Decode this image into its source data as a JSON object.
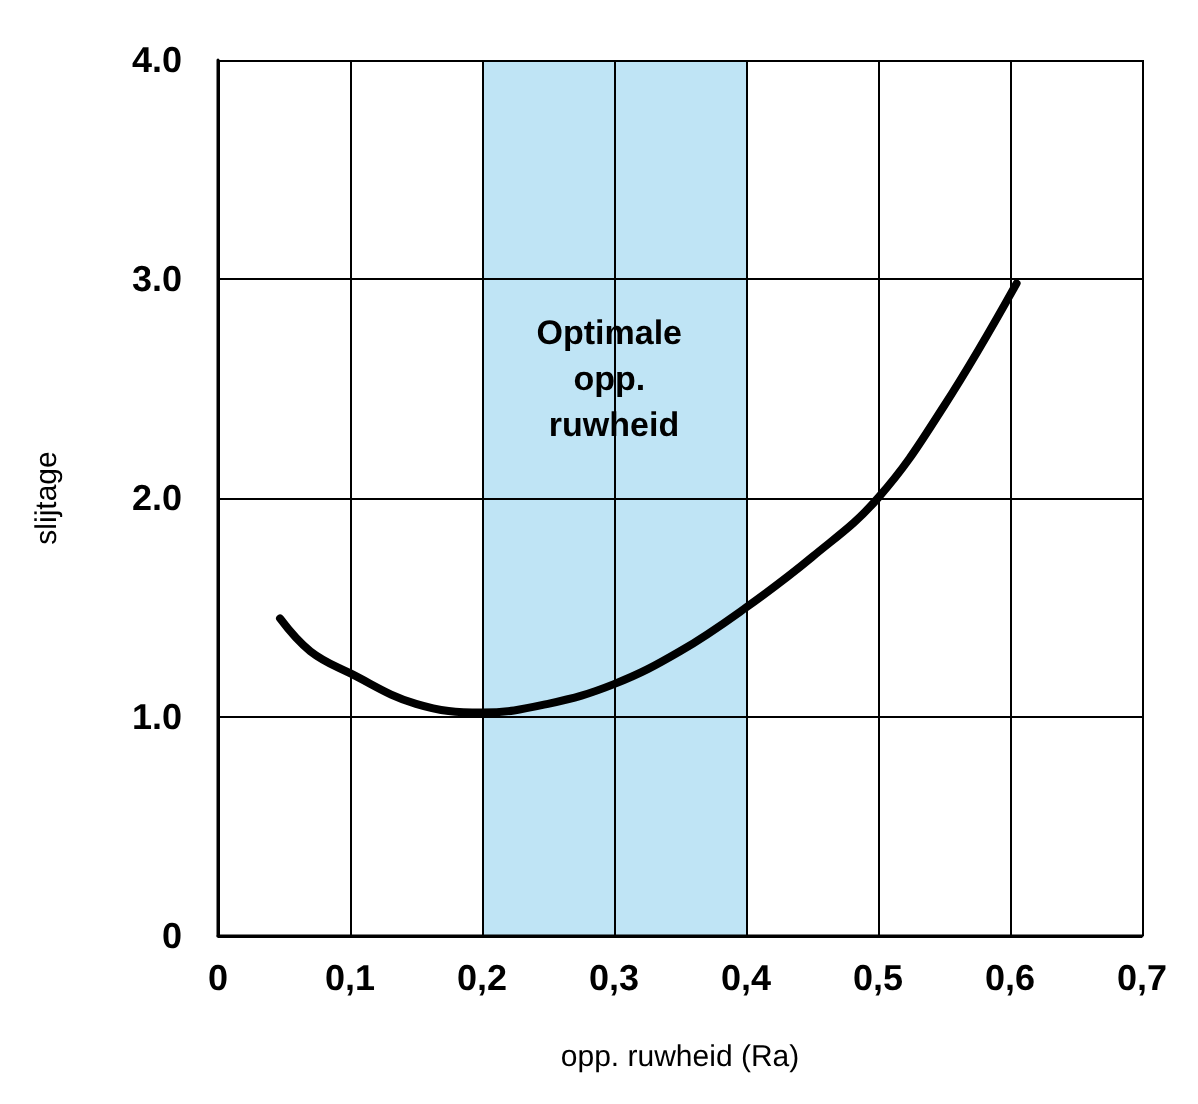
{
  "chart_data": {
    "type": "line",
    "xlabel": "opp. ruwheid (Ra)",
    "ylabel": "slijtage",
    "x": [
      0.047,
      0.07,
      0.1,
      0.15,
      0.2,
      0.25,
      0.3,
      0.35,
      0.4,
      0.45,
      0.5,
      0.55,
      0.605
    ],
    "series": [
      {
        "color": "#000000",
        "values": [
          1.45,
          1.3,
          1.2,
          1.06,
          1.02,
          1.06,
          1.15,
          1.3,
          1.5,
          1.73,
          2.0,
          2.42,
          2.98
        ]
      }
    ],
    "xlim": [
      0,
      0.7
    ],
    "xticks": [
      0,
      {
        "value": 0.1,
        "label": "0,1"
      },
      {
        "value": 0.2,
        "label": "0,2"
      },
      {
        "value": 0.3,
        "label": "0,3"
      },
      {
        "value": 0.4,
        "label": "0,4"
      },
      {
        "value": 0.5,
        "label": "0,5"
      },
      {
        "value": 0.6,
        "label": "0,6"
      },
      {
        "value": 0.7,
        "label": "0,7"
      }
    ],
    "ylim": [
      0,
      4
    ],
    "yticks": [
      0,
      {
        "value": 1,
        "label": "1.0"
      },
      {
        "value": 2,
        "label": "2.0"
      },
      {
        "value": 3,
        "label": "3.0"
      },
      {
        "value": 4,
        "label": "4.0"
      }
    ],
    "bands": [
      {
        "axis": "x",
        "from": 0.2,
        "to": 0.4,
        "label": "Optimale opp. ruwheid",
        "color": "#bfe4f5"
      }
    ],
    "grid": true,
    "marker": "none",
    "line_style": "solid"
  }
}
